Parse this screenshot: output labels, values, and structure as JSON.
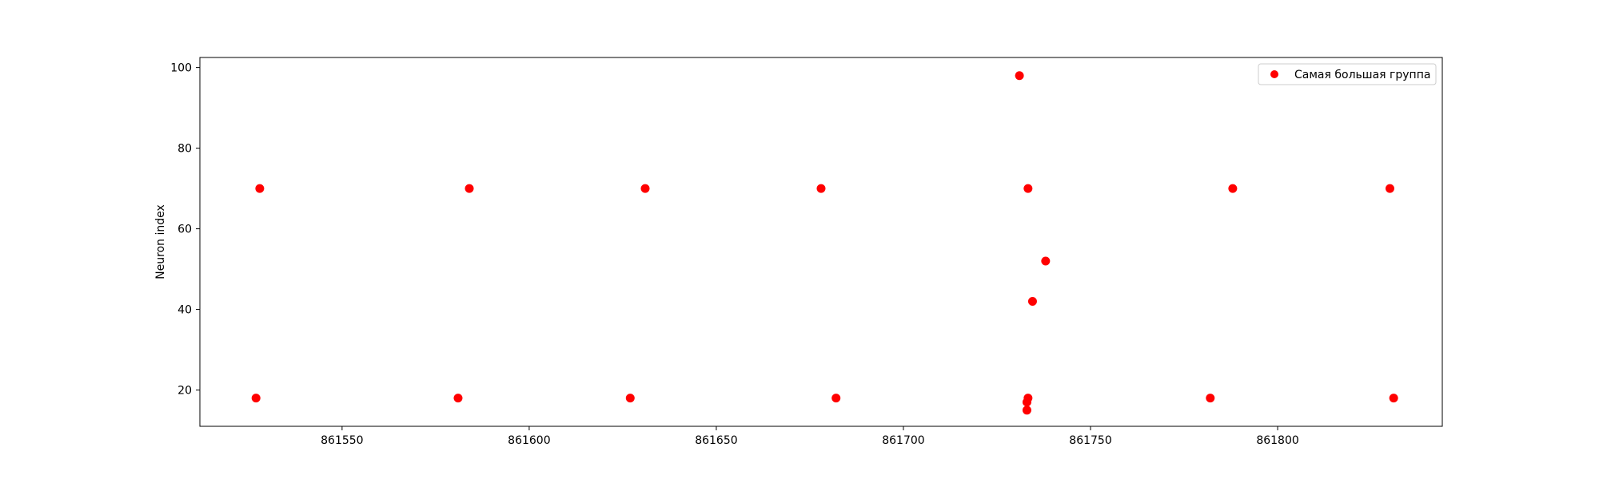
{
  "chart_data": {
    "type": "scatter",
    "title": "",
    "xlabel": "",
    "ylabel": "Neuron index",
    "xlim": [
      861512,
      861844
    ],
    "ylim": [
      11,
      102.5
    ],
    "xticks": [
      861550,
      861600,
      861650,
      861700,
      861750,
      861800
    ],
    "yticks": [
      20,
      40,
      60,
      80,
      100
    ],
    "grid": false,
    "legend_position": "top-right",
    "series": [
      {
        "name": "Самая большая группа",
        "color": "#ff0000",
        "points": [
          [
            861527,
            18
          ],
          [
            861528,
            70
          ],
          [
            861581,
            18
          ],
          [
            861584,
            70
          ],
          [
            861627,
            18
          ],
          [
            861631,
            70
          ],
          [
            861678,
            70
          ],
          [
            861682,
            18
          ],
          [
            861731,
            98
          ],
          [
            861733,
            15
          ],
          [
            861733,
            17
          ],
          [
            861733.3,
            18
          ],
          [
            861733.3,
            70
          ],
          [
            861734.5,
            42
          ],
          [
            861738,
            52
          ],
          [
            861782,
            18
          ],
          [
            861788,
            70
          ],
          [
            861830,
            70
          ],
          [
            861831,
            18
          ]
        ]
      }
    ]
  }
}
